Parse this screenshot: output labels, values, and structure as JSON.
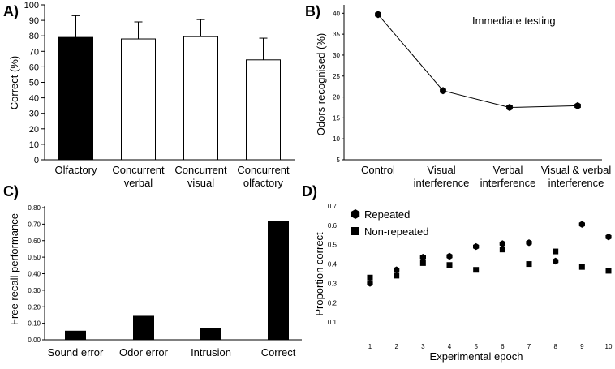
{
  "chart_data": [
    {
      "panel": "A)",
      "type": "bar",
      "title": "",
      "ylabel": "Correct (%)",
      "xlabel": "",
      "ylim": [
        0,
        100
      ],
      "yticks": [
        "0",
        "10",
        "20",
        "30",
        "40",
        "50",
        "60",
        "70",
        "80",
        "90",
        "100"
      ],
      "categories": [
        {
          "line1": "Olfactory",
          "line2": ""
        },
        {
          "line1": "Concurrent",
          "line2": "verbal"
        },
        {
          "line1": "Concurrent",
          "line2": "visual"
        },
        {
          "line1": "Concurrent",
          "line2": "olfactory"
        }
      ],
      "values": [
        79,
        78,
        79.5,
        64.5
      ],
      "errors": [
        14,
        11,
        11,
        14
      ],
      "fills": [
        "#000000",
        "#ffffff",
        "#ffffff",
        "#ffffff"
      ]
    },
    {
      "panel": "B)",
      "type": "line",
      "title": "Immediate testing",
      "ylabel": "Odors recognised (%)",
      "xlabel": "",
      "ylim": [
        5,
        42
      ],
      "yticks": [
        "5",
        "10",
        "15",
        "20",
        "25",
        "30",
        "35",
        "40"
      ],
      "categories": [
        {
          "line1": "Control",
          "line2": ""
        },
        {
          "line1": "Visual",
          "line2": "interference"
        },
        {
          "line1": "Verbal",
          "line2": "interference"
        },
        {
          "line1": "Visual & verbal",
          "line2": "interference"
        }
      ],
      "values": [
        39.7,
        21.5,
        17.5,
        17.9
      ]
    },
    {
      "panel": "C)",
      "type": "bar",
      "title": "",
      "ylabel": "Free recall performance",
      "xlabel": "",
      "ylim": [
        0,
        0.8
      ],
      "yticks": [
        "0.00",
        "0.10",
        "0.20",
        "0.30",
        "0.40",
        "0.50",
        "0.60",
        "0.70",
        "0.80"
      ],
      "categories": [
        "Sound error",
        "Odor error",
        "Intrusion",
        "Correct"
      ],
      "values": [
        0.055,
        0.145,
        0.07,
        0.72
      ]
    },
    {
      "panel": "D)",
      "type": "scatter",
      "title": "",
      "ylabel": "Proportion correct",
      "xlabel": "Experimental epoch",
      "ylim": [
        0,
        0.7
      ],
      "yticks": [
        "0.1",
        "0.2",
        "0.3",
        "0.4",
        "0.5",
        "0.6",
        "0.7"
      ],
      "x": [
        1,
        2,
        3,
        4,
        5,
        6,
        7,
        8,
        9,
        10
      ],
      "xticks": [
        "1",
        "2",
        "3",
        "4",
        "5",
        "6",
        "7",
        "8",
        "9",
        "10"
      ],
      "series": [
        {
          "name": "Repeated",
          "marker": "hexagon",
          "values": [
            0.3,
            0.37,
            0.435,
            0.44,
            0.49,
            0.505,
            0.51,
            0.415,
            0.605,
            0.54
          ]
        },
        {
          "name": "Non-repeated",
          "marker": "square",
          "values": [
            0.33,
            0.34,
            0.405,
            0.395,
            0.37,
            0.475,
            0.4,
            0.465,
            0.385,
            0.365
          ]
        }
      ]
    }
  ]
}
